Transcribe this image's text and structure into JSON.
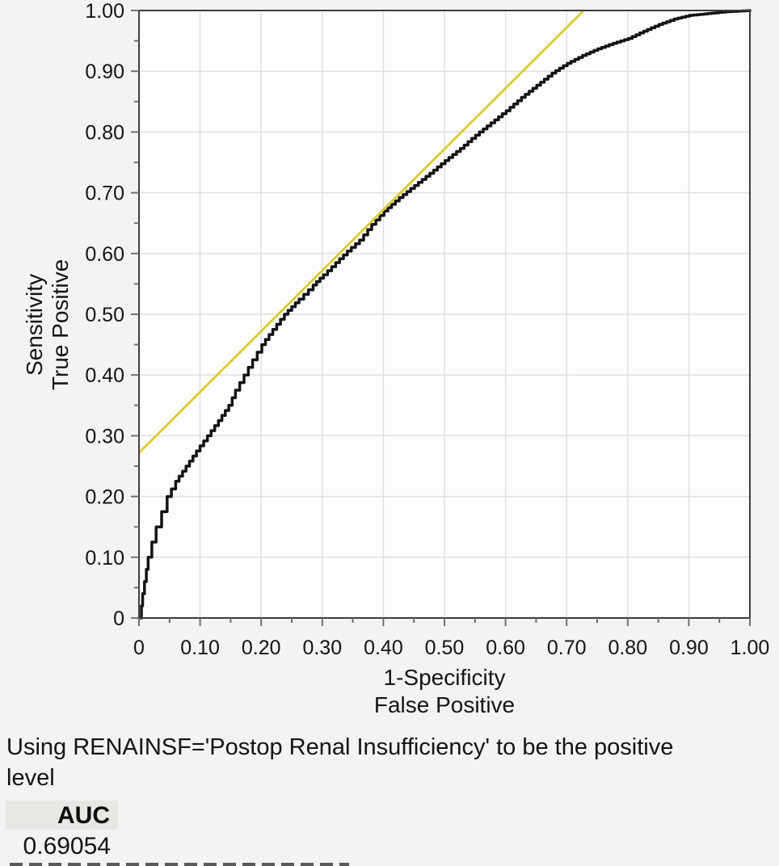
{
  "caption": "Using RENAINSF='Postop Renal Insufficiency' to be the positive\nlevel",
  "auc_table": {
    "header": "AUC",
    "value": "0.69054"
  },
  "chart_data": {
    "type": "line",
    "xlabel": "1-Specificity",
    "xlabel2": "False Positive",
    "ylabel": "Sensitivity",
    "ylabel2": "True Positive",
    "xlim": [
      0,
      1
    ],
    "ylim": [
      0,
      1
    ],
    "grid": true,
    "tick_values": [
      0,
      0.1,
      0.2,
      0.3,
      0.4,
      0.5,
      0.6,
      0.7,
      0.8,
      0.9,
      1
    ],
    "tick_labels": [
      "0",
      "0.10",
      "0.20",
      "0.30",
      "0.40",
      "0.50",
      "0.60",
      "0.70",
      "0.80",
      "0.90",
      "1.00"
    ],
    "minor_tick_step": 0.05,
    "auc": 0.69054,
    "series": [
      {
        "name": "ROC curve",
        "style": "step",
        "color": "#141414",
        "points": [
          [
            0,
            0
          ],
          [
            0.004,
            0.02
          ],
          [
            0.006,
            0.04
          ],
          [
            0.009,
            0.06
          ],
          [
            0.012,
            0.08
          ],
          [
            0.015,
            0.1
          ],
          [
            0.021,
            0.125
          ],
          [
            0.028,
            0.15
          ],
          [
            0.037,
            0.175
          ],
          [
            0.046,
            0.2
          ],
          [
            0.06,
            0.225
          ],
          [
            0.077,
            0.25
          ],
          [
            0.094,
            0.275
          ],
          [
            0.112,
            0.3
          ],
          [
            0.13,
            0.325
          ],
          [
            0.147,
            0.35
          ],
          [
            0.158,
            0.375
          ],
          [
            0.172,
            0.4
          ],
          [
            0.186,
            0.425
          ],
          [
            0.201,
            0.45
          ],
          [
            0.219,
            0.475
          ],
          [
            0.238,
            0.5
          ],
          [
            0.262,
            0.525
          ],
          [
            0.285,
            0.548
          ],
          [
            0.302,
            0.565
          ],
          [
            0.322,
            0.585
          ],
          [
            0.341,
            0.604
          ],
          [
            0.361,
            0.622
          ],
          [
            0.381,
            0.648
          ],
          [
            0.401,
            0.67
          ],
          [
            0.426,
            0.692
          ],
          [
            0.451,
            0.712
          ],
          [
            0.476,
            0.732
          ],
          [
            0.501,
            0.753
          ],
          [
            0.526,
            0.773
          ],
          [
            0.551,
            0.795
          ],
          [
            0.576,
            0.815
          ],
          [
            0.601,
            0.835
          ],
          [
            0.626,
            0.857
          ],
          [
            0.651,
            0.877
          ],
          [
            0.676,
            0.897
          ],
          [
            0.701,
            0.913
          ],
          [
            0.726,
            0.926
          ],
          [
            0.751,
            0.937
          ],
          [
            0.776,
            0.946
          ],
          [
            0.801,
            0.954
          ],
          [
            0.826,
            0.966
          ],
          [
            0.851,
            0.977
          ],
          [
            0.876,
            0.986
          ],
          [
            0.901,
            0.992
          ],
          [
            0.931,
            0.995
          ],
          [
            0.961,
            0.998
          ],
          [
            1,
            1
          ]
        ]
      },
      {
        "name": "reference line",
        "style": "line",
        "color": "#decb39",
        "points": [
          [
            0,
            0.272
          ],
          [
            0.728,
            1.0
          ]
        ]
      }
    ]
  },
  "colors": {
    "page_bg": "#f3f3f1",
    "plot_bg": "#fdfdfd",
    "grid": "#e0e0e0",
    "frame": "#3d3d3d",
    "tick": "#707070",
    "text": "#141414",
    "auc_header_bg": "#e7e7e4"
  }
}
